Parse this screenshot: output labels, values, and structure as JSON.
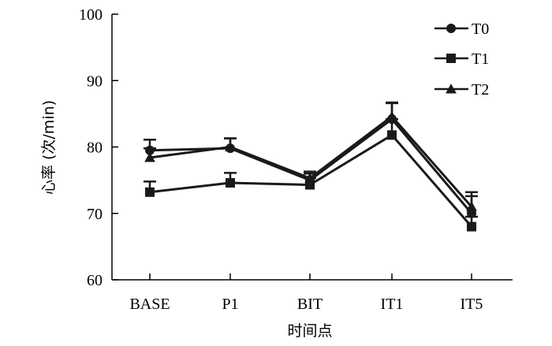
{
  "chart_data": {
    "type": "line",
    "categories": [
      "BASE",
      "P1",
      "BIT",
      "IT1",
      "IT5"
    ],
    "series": [
      {
        "name": "T0",
        "marker": "circle",
        "values": [
          79.5,
          79.8,
          75.0,
          84.2,
          70.0
        ],
        "errors": [
          1.6,
          1.5,
          1.0,
          2.4,
          2.6
        ]
      },
      {
        "name": "T1",
        "marker": "square",
        "values": [
          73.2,
          74.6,
          74.3,
          81.8,
          68.0
        ],
        "errors": [
          1.6,
          1.5,
          1.0,
          2.4,
          1.5
        ]
      },
      {
        "name": "T2",
        "marker": "triangle",
        "values": [
          78.4,
          80.0,
          75.3,
          84.6,
          71.0
        ],
        "errors": [
          1.4,
          1.3,
          1.0,
          2.1,
          2.2
        ]
      }
    ],
    "xlabel": "时间点",
    "ylabel": "心率 (次/min)",
    "ylim": [
      60,
      100
    ],
    "yticks": [
      60,
      70,
      80,
      90,
      100
    ],
    "grid": false,
    "legend_position": "top-right",
    "line_color": "#1a1a1a"
  }
}
